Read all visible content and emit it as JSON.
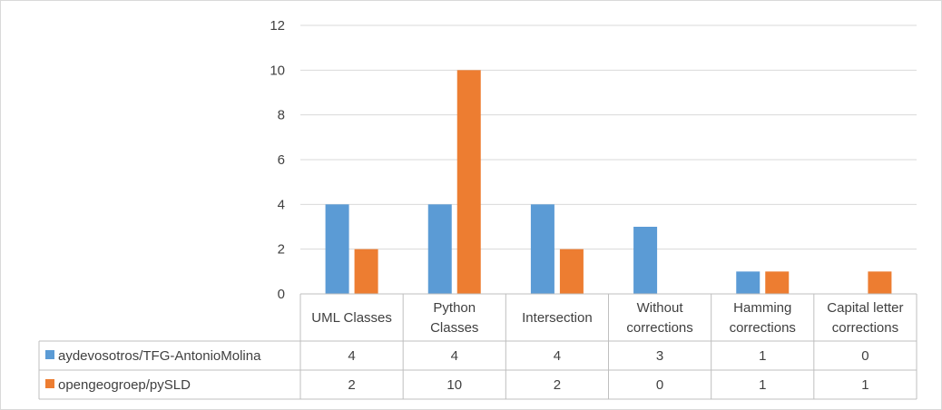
{
  "chart_data": {
    "type": "bar",
    "title": "",
    "xlabel": "",
    "ylabel": "",
    "ylim": [
      0,
      12
    ],
    "yticks": [
      0,
      2,
      4,
      6,
      8,
      10,
      12
    ],
    "grid": true,
    "legend_position": "data-table-left",
    "categories": [
      [
        "UML Classes"
      ],
      [
        "Python",
        "Classes"
      ],
      [
        "Intersection"
      ],
      [
        "Without",
        "corrections"
      ],
      [
        "Hamming",
        "corrections"
      ],
      [
        "Capital letter",
        "corrections"
      ]
    ],
    "series": [
      {
        "name": "aydevosotros/TFG-AntonioMolina",
        "color": "#5b9bd5",
        "values": [
          4,
          4,
          4,
          3,
          1,
          0
        ]
      },
      {
        "name": "opengeogroep/pySLD",
        "color": "#ed7d31",
        "values": [
          2,
          10,
          2,
          0,
          1,
          1
        ]
      }
    ]
  }
}
